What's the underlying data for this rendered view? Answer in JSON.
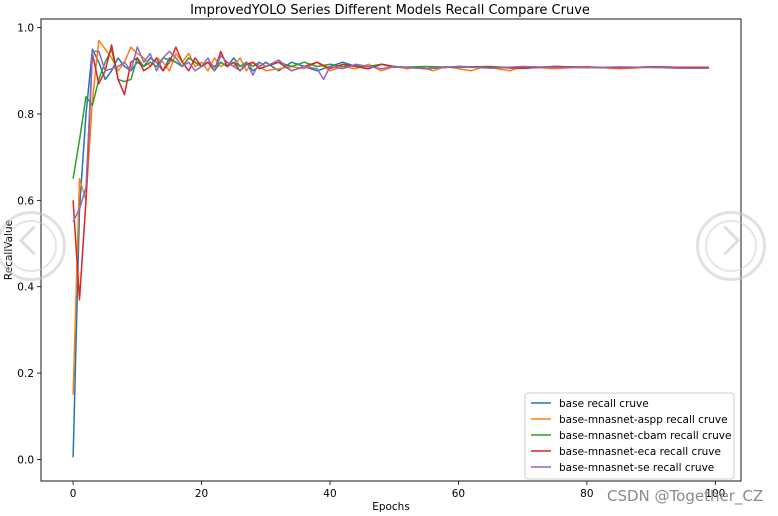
{
  "chart_data": {
    "type": "line",
    "title": "ImprovedYOLO Series Different Models Recall Compare Cruve",
    "xlabel": "Epochs",
    "ylabel": "RecallValue",
    "xlim": [
      -5,
      104
    ],
    "ylim": [
      -0.05,
      1.02
    ],
    "xticks": [
      0,
      20,
      40,
      60,
      80,
      100
    ],
    "yticks": [
      0.0,
      0.2,
      0.4,
      0.6,
      0.8,
      1.0
    ],
    "xtick_labels": [
      "0",
      "20",
      "40",
      "60",
      "80",
      "100"
    ],
    "ytick_labels": [
      "0.0",
      "0.2",
      "0.4",
      "0.6",
      "0.8",
      "1.0"
    ],
    "grid": false,
    "legend_position": "lower-right",
    "series": [
      {
        "name": "base recall cruve",
        "color": "#1f77b4",
        "x": [
          0,
          1,
          2,
          3,
          4,
          5,
          6,
          7,
          8,
          9,
          10,
          11,
          12,
          13,
          14,
          15,
          16,
          17,
          18,
          19,
          20,
          21,
          22,
          23,
          24,
          25,
          26,
          27,
          28,
          29,
          30,
          32,
          34,
          36,
          38,
          40,
          42,
          44,
          46,
          48,
          50,
          55,
          60,
          65,
          70,
          75,
          80,
          85,
          90,
          95,
          99
        ],
        "y": [
          0.005,
          0.58,
          0.8,
          0.95,
          0.92,
          0.88,
          0.9,
          0.93,
          0.91,
          0.9,
          0.92,
          0.91,
          0.93,
          0.92,
          0.9,
          0.93,
          0.92,
          0.91,
          0.93,
          0.92,
          0.91,
          0.92,
          0.9,
          0.92,
          0.91,
          0.93,
          0.91,
          0.92,
          0.9,
          0.91,
          0.92,
          0.9,
          0.92,
          0.91,
          0.9,
          0.91,
          0.92,
          0.91,
          0.905,
          0.915,
          0.91,
          0.905,
          0.91,
          0.908,
          0.906,
          0.91,
          0.908,
          0.907,
          0.909,
          0.908,
          0.908
        ]
      },
      {
        "name": "base-mnasnet-aspp recall cruve",
        "color": "#ff7f0e",
        "x": [
          0,
          1,
          2,
          3,
          4,
          5,
          6,
          7,
          8,
          9,
          10,
          11,
          12,
          13,
          14,
          15,
          16,
          17,
          18,
          19,
          20,
          21,
          22,
          23,
          24,
          25,
          26,
          27,
          28,
          29,
          30,
          32,
          34,
          36,
          38,
          40,
          42,
          44,
          46,
          48,
          50,
          52,
          54,
          56,
          58,
          60,
          62,
          64,
          66,
          68,
          70,
          75,
          80,
          85,
          90,
          95,
          99
        ],
        "y": [
          0.15,
          0.65,
          0.6,
          0.83,
          0.97,
          0.95,
          0.93,
          0.9,
          0.92,
          0.955,
          0.94,
          0.93,
          0.91,
          0.93,
          0.92,
          0.9,
          0.94,
          0.92,
          0.94,
          0.91,
          0.92,
          0.9,
          0.93,
          0.91,
          0.92,
          0.91,
          0.93,
          0.9,
          0.92,
          0.91,
          0.9,
          0.905,
          0.91,
          0.905,
          0.92,
          0.9,
          0.91,
          0.905,
          0.915,
          0.9,
          0.91,
          0.905,
          0.91,
          0.9,
          0.91,
          0.905,
          0.9,
          0.91,
          0.905,
          0.9,
          0.91,
          0.905,
          0.91,
          0.905,
          0.908,
          0.906,
          0.908
        ]
      },
      {
        "name": "base-mnasnet-cbam recall cruve",
        "color": "#2ca02c",
        "x": [
          0,
          1,
          2,
          3,
          4,
          5,
          6,
          7,
          8,
          9,
          10,
          11,
          12,
          13,
          14,
          15,
          16,
          17,
          18,
          19,
          20,
          21,
          22,
          23,
          24,
          25,
          26,
          27,
          28,
          29,
          30,
          32,
          34,
          36,
          38,
          40,
          42,
          44,
          46,
          48,
          50,
          55,
          60,
          65,
          70,
          75,
          80,
          85,
          90,
          95,
          99
        ],
        "y": [
          0.65,
          0.74,
          0.84,
          0.82,
          0.88,
          0.92,
          0.95,
          0.88,
          0.875,
          0.88,
          0.93,
          0.91,
          0.92,
          0.91,
          0.93,
          0.925,
          0.92,
          0.91,
          0.93,
          0.92,
          0.91,
          0.92,
          0.91,
          0.92,
          0.91,
          0.92,
          0.91,
          0.92,
          0.91,
          0.92,
          0.91,
          0.92,
          0.91,
          0.92,
          0.91,
          0.915,
          0.91,
          0.912,
          0.91,
          0.915,
          0.908,
          0.91,
          0.908,
          0.91,
          0.906,
          0.91,
          0.908,
          0.907,
          0.909,
          0.908,
          0.908
        ]
      },
      {
        "name": "base-mnasnet-eca recall cruve",
        "color": "#d62728",
        "x": [
          0,
          1,
          2,
          3,
          4,
          5,
          6,
          7,
          8,
          9,
          10,
          11,
          12,
          13,
          14,
          15,
          16,
          17,
          18,
          19,
          20,
          21,
          22,
          23,
          24,
          25,
          26,
          27,
          28,
          29,
          30,
          32,
          34,
          36,
          38,
          40,
          42,
          44,
          46,
          48,
          50,
          55,
          60,
          65,
          70,
          75,
          80,
          85,
          90,
          95,
          99
        ],
        "y": [
          0.6,
          0.37,
          0.6,
          0.94,
          0.87,
          0.9,
          0.96,
          0.88,
          0.845,
          0.92,
          0.93,
          0.9,
          0.91,
          0.93,
          0.9,
          0.92,
          0.955,
          0.92,
          0.9,
          0.93,
          0.91,
          0.92,
          0.9,
          0.945,
          0.91,
          0.92,
          0.9,
          0.915,
          0.92,
          0.905,
          0.91,
          0.92,
          0.9,
          0.91,
          0.92,
          0.905,
          0.915,
          0.91,
          0.905,
          0.915,
          0.91,
          0.905,
          0.91,
          0.908,
          0.906,
          0.91,
          0.908,
          0.907,
          0.909,
          0.908,
          0.908
        ]
      },
      {
        "name": "base-mnasnet-se recall cruve",
        "color": "#9467bd",
        "x": [
          0,
          1,
          2,
          3,
          4,
          5,
          6,
          7,
          8,
          9,
          10,
          11,
          12,
          13,
          14,
          15,
          16,
          17,
          18,
          19,
          20,
          21,
          22,
          23,
          24,
          25,
          26,
          27,
          28,
          29,
          30,
          32,
          34,
          36,
          38,
          39,
          40,
          42,
          44,
          46,
          48,
          50,
          55,
          60,
          65,
          70,
          75,
          80,
          85,
          90,
          95,
          99
        ],
        "y": [
          0.55,
          0.58,
          0.63,
          0.945,
          0.945,
          0.9,
          0.905,
          0.91,
          0.92,
          0.9,
          0.955,
          0.92,
          0.94,
          0.9,
          0.93,
          0.945,
          0.93,
          0.91,
          0.92,
          0.9,
          0.91,
          0.93,
          0.9,
          0.935,
          0.92,
          0.91,
          0.9,
          0.92,
          0.89,
          0.92,
          0.91,
          0.925,
          0.9,
          0.91,
          0.905,
          0.88,
          0.91,
          0.905,
          0.915,
          0.91,
          0.905,
          0.91,
          0.905,
          0.91,
          0.906,
          0.91,
          0.908,
          0.907,
          0.909,
          0.908,
          0.906,
          0.906
        ]
      }
    ]
  },
  "watermark": "CSDN @Together_CZ"
}
